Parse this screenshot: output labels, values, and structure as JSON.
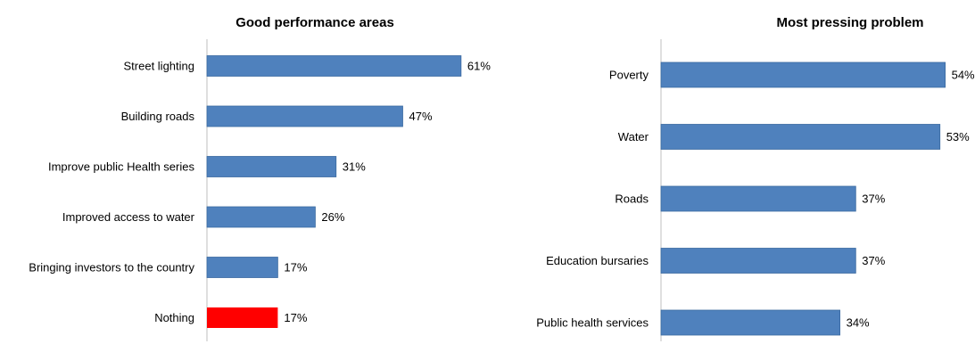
{
  "chart_data": [
    {
      "type": "bar",
      "orientation": "horizontal",
      "title": "Good performance areas",
      "categories": [
        "Street lighting",
        "Building roads",
        "Improve public Health series",
        "Improved access to water",
        "Bringing investors to the country",
        "Nothing"
      ],
      "values": [
        61,
        47,
        31,
        26,
        17,
        17
      ],
      "value_labels": [
        "61%",
        "47%",
        "31%",
        "26%",
        "17%",
        "17%"
      ],
      "bar_colors": [
        "#4f81bd",
        "#4f81bd",
        "#4f81bd",
        "#4f81bd",
        "#4f81bd",
        "#ff0000"
      ],
      "xlim": [
        0,
        100
      ],
      "grid": false,
      "legend": "none"
    },
    {
      "type": "bar",
      "orientation": "horizontal",
      "title": "Most pressing problem",
      "categories": [
        "Poverty",
        "Water",
        "Roads",
        "Education bursaries",
        "Public health services"
      ],
      "values": [
        54,
        53,
        37,
        37,
        34
      ],
      "value_labels": [
        "54%",
        "53%",
        "37%",
        "37%",
        "34%"
      ],
      "bar_colors": [
        "#4f81bd",
        "#4f81bd",
        "#4f81bd",
        "#4f81bd",
        "#4f81bd"
      ],
      "xlim": [
        0,
        100
      ],
      "grid": false,
      "legend": "none"
    }
  ]
}
